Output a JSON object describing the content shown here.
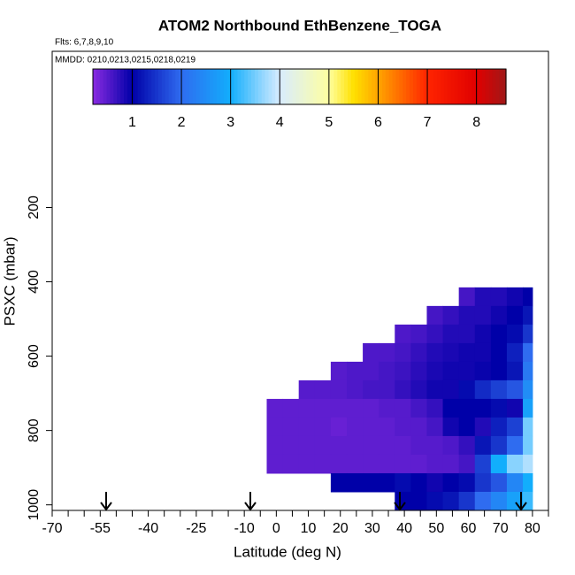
{
  "chart_data": {
    "type": "heatmap",
    "title": "ATOM2 Northbound EthBenzene_TOGA",
    "subtitle": "Flts: 6,7,8,9,10",
    "annotation": "MMDD: 0210,0213,0215,0218,0219",
    "xlabel": "Latitude (deg N)",
    "ylabel": "PSXC (mbar)",
    "xlim": [
      -70,
      85
    ],
    "ylim": [
      1015,
      -220
    ],
    "xticks": [
      -70,
      -55,
      -40,
      -25,
      -10,
      0,
      10,
      20,
      30,
      40,
      50,
      60,
      70,
      80
    ],
    "xminorticks": [
      -65,
      -60,
      -50,
      -45,
      -35,
      -30,
      -20,
      -15,
      -5,
      5,
      15,
      25,
      35,
      45,
      55,
      65,
      75,
      85
    ],
    "yticks": [
      200,
      400,
      600,
      800,
      1000
    ],
    "colorbar": {
      "lim": [
        0.2,
        8.6
      ],
      "ticks": [
        1,
        2,
        3,
        4,
        5,
        6,
        7,
        8
      ]
    },
    "colorscale": [
      [
        0.2,
        "#8a2be2"
      ],
      [
        1,
        "#0000a8"
      ],
      [
        2,
        "#2f6cf0"
      ],
      [
        3,
        "#12aefc"
      ],
      [
        4,
        "#d8ecff"
      ],
      [
        5,
        "#ffffa0"
      ],
      [
        5.5,
        "#ffe000"
      ],
      [
        6,
        "#ffa500"
      ],
      [
        7,
        "#ff2400"
      ],
      [
        8,
        "#e00000"
      ],
      [
        8.6,
        "#a01818"
      ]
    ],
    "lat_edges": [
      -3,
      2,
      7,
      12,
      17,
      22,
      27,
      32,
      37,
      42,
      47,
      52,
      57,
      62,
      67,
      72,
      77,
      80
    ],
    "pressure_edges": [
      415,
      465,
      515,
      565,
      615,
      665,
      715,
      765,
      815,
      865,
      915,
      965,
      1015
    ],
    "values": [
      [
        null,
        null,
        null,
        null,
        null,
        null,
        null,
        null,
        null,
        null,
        null,
        null,
        0.6,
        0.8,
        0.8,
        0.9,
        1.0
      ],
      [
        null,
        null,
        null,
        null,
        null,
        null,
        null,
        null,
        null,
        null,
        0.6,
        0.7,
        0.8,
        0.8,
        0.9,
        1.0,
        1.2
      ],
      [
        null,
        null,
        null,
        null,
        null,
        null,
        null,
        null,
        0.55,
        0.6,
        0.7,
        0.8,
        0.8,
        0.9,
        1.0,
        1.1,
        1.5
      ],
      [
        null,
        null,
        null,
        null,
        null,
        null,
        0.55,
        0.55,
        0.6,
        0.7,
        0.8,
        0.85,
        0.9,
        0.9,
        1.0,
        1.3,
        2.0
      ],
      [
        null,
        null,
        null,
        null,
        0.5,
        0.55,
        0.55,
        0.6,
        0.65,
        0.75,
        0.85,
        0.9,
        0.9,
        0.95,
        1.0,
        1.2,
        2.2
      ],
      [
        null,
        null,
        0.5,
        0.5,
        0.5,
        0.55,
        0.6,
        0.6,
        0.7,
        0.8,
        0.9,
        0.9,
        1.1,
        1.4,
        1.6,
        1.8,
        2.5
      ],
      [
        0.45,
        0.45,
        0.45,
        0.45,
        0.45,
        0.45,
        0.45,
        0.5,
        0.5,
        0.6,
        0.7,
        1.0,
        1.0,
        1.0,
        1.1,
        0.9,
        2.8
      ],
      [
        0.45,
        0.45,
        0.45,
        0.45,
        0.4,
        0.45,
        0.45,
        0.45,
        0.5,
        0.5,
        0.6,
        0.9,
        1.0,
        0.8,
        1.3,
        1.6,
        3.5
      ],
      [
        0.45,
        0.45,
        0.45,
        0.45,
        0.45,
        0.45,
        0.45,
        0.45,
        0.45,
        0.5,
        0.5,
        0.55,
        0.7,
        1.2,
        1.5,
        2.0,
        3.5
      ],
      [
        0.45,
        0.45,
        0.45,
        0.45,
        0.45,
        0.45,
        0.45,
        0.45,
        0.45,
        0.45,
        0.5,
        0.5,
        0.6,
        1.6,
        3.0,
        3.6,
        3.8
      ],
      [
        null,
        null,
        null,
        null,
        1.0,
        1.0,
        1.0,
        1.0,
        1.1,
        1.0,
        0.9,
        1.0,
        1.1,
        1.5,
        1.8,
        2.4,
        3.0
      ],
      [
        null,
        null,
        null,
        null,
        null,
        null,
        null,
        null,
        1.0,
        1.0,
        1.1,
        1.2,
        1.5,
        2.0,
        2.4,
        2.8,
        3.2
      ]
    ]
  }
}
